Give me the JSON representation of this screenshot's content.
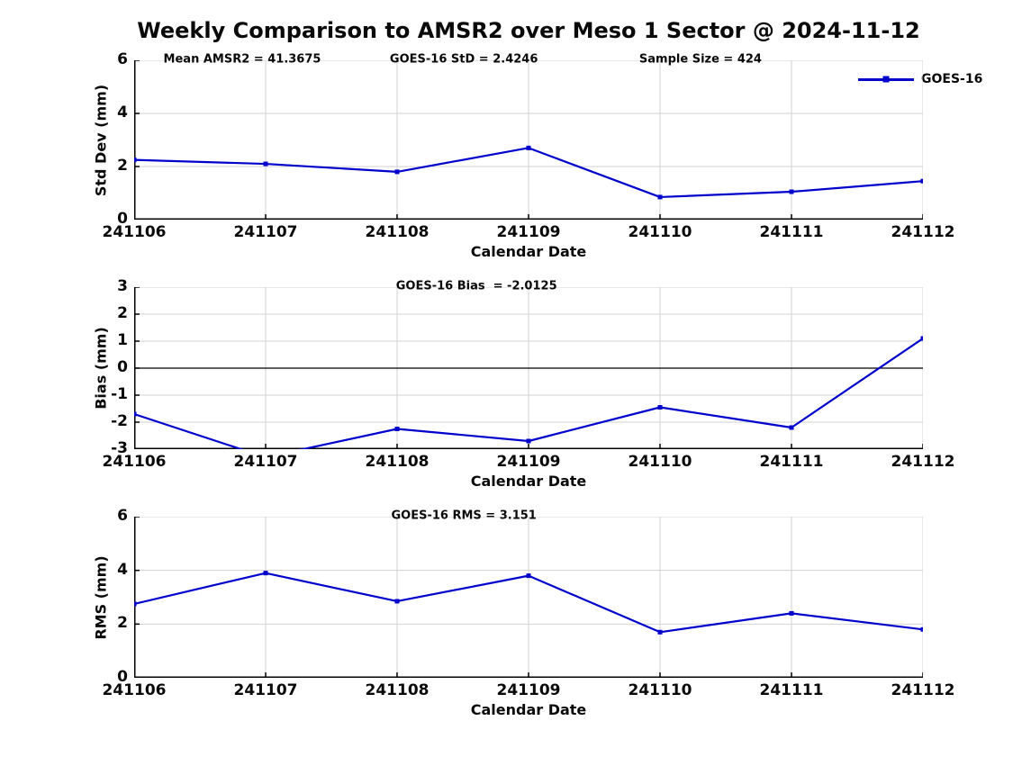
{
  "title": "Weekly Comparison to AMSR2 over Meso 1 Sector @ 2024-11-12",
  "legend": {
    "label": "GOES-16"
  },
  "colors": {
    "line": "#0000cc",
    "marker": "#0000cc",
    "grid": "#d2d2d2",
    "axis": "#000000",
    "zero_line": "#000000",
    "text": "#0a0a0a"
  },
  "chart_data": [
    {
      "type": "line",
      "panel": "std-dev",
      "annotations": [
        "Mean AMSR2 = 41.3675",
        "GOES-16 StD = 2.4246",
        "Sample Size = 424"
      ],
      "categories": [
        "241106",
        "241107",
        "241108",
        "241109",
        "241110",
        "241111",
        "241112"
      ],
      "xlabel": "Calendar Date",
      "ylabel": "Std Dev (mm)",
      "ylim": [
        0,
        6
      ],
      "yticks": [
        0,
        2,
        4,
        6
      ],
      "grid": true,
      "zero_line": false,
      "legend_position": "top-right",
      "series": [
        {
          "name": "GOES-16",
          "values": [
            2.25,
            2.1,
            1.8,
            2.7,
            0.85,
            1.05,
            1.45
          ]
        }
      ]
    },
    {
      "type": "line",
      "panel": "bias",
      "annotations": [
        "GOES-16 Bias  = -2.0125"
      ],
      "categories": [
        "241106",
        "241107",
        "241108",
        "241109",
        "241110",
        "241111",
        "241112"
      ],
      "xlabel": "Calendar Date",
      "ylabel": "Bias (mm)",
      "ylim": [
        -3,
        3
      ],
      "yticks": [
        -3,
        -2,
        -1,
        0,
        1,
        2,
        3
      ],
      "grid": true,
      "zero_line": true,
      "series": [
        {
          "name": "GOES-16",
          "values": [
            -1.7,
            -3.3,
            -2.25,
            -2.7,
            -1.45,
            -2.2,
            1.1
          ]
        }
      ]
    },
    {
      "type": "line",
      "panel": "rms",
      "annotations": [
        "GOES-16 RMS = 3.151"
      ],
      "categories": [
        "241106",
        "241107",
        "241108",
        "241109",
        "241110",
        "241111",
        "241112"
      ],
      "xlabel": "Calendar Date",
      "ylabel": "RMS (mm)",
      "ylim": [
        0,
        6
      ],
      "yticks": [
        0,
        2,
        4,
        6
      ],
      "grid": true,
      "zero_line": false,
      "series": [
        {
          "name": "GOES-16",
          "values": [
            2.75,
            3.9,
            2.85,
            3.8,
            1.7,
            2.4,
            1.8
          ]
        }
      ]
    }
  ]
}
